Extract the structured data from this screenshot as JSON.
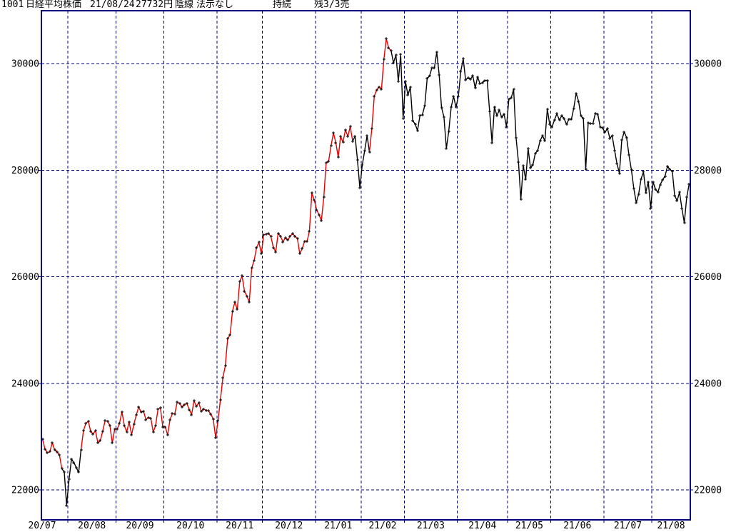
{
  "header": {
    "code": "1001",
    "name": "日経平均株価",
    "date": "21/08/24",
    "price": "27732円",
    "candle_type": "陰線",
    "display_mode": "法示なし",
    "signal_status": "持続",
    "position": "残3/3売"
  },
  "chart_data": {
    "type": "line",
    "title": "1001 日経平均株価 21/08/24 27732円 陰線 法示なし 持続 残3/3売",
    "xlabel": "",
    "ylabel": "",
    "y_ticks": [
      22000,
      24000,
      26000,
      28000,
      30000
    ],
    "ylim": [
      21430,
      30990
    ],
    "grid": "dashed navy, vertical lines at month boundaries",
    "legend": "line colored red (buy signal period) / black (sell signal period), black + markers at daily closes",
    "palette": {
      "frame": "#000080",
      "grid": "#000080",
      "red": "#e60000",
      "black": "#000000",
      "marker": "#000000",
      "text": "#000000",
      "background": "#ffffff"
    },
    "months": [
      {
        "label": "20/07",
        "values": [
          22945,
          22770,
          22696,
          22717,
          22884,
          22751,
          22715,
          22657,
          22397,
          22339,
          21710
        ]
      },
      {
        "label": "20/08",
        "values": [
          22195,
          22573,
          22515,
          22418,
          22330,
          22750,
          23110,
          23249,
          23289,
          23096,
          23051,
          23110,
          22880,
          22920,
          23100,
          23296,
          23290,
          23208,
          22882,
          23140
        ]
      },
      {
        "label": "20/09",
        "values": [
          23138,
          23247,
          23466,
          23205,
          23090,
          23274,
          23033,
          23235,
          23406,
          23559,
          23455,
          23476,
          23319,
          23360,
          23346,
          23087,
          23204,
          23512,
          23539,
          23185
        ]
      },
      {
        "label": "20/10",
        "values": [
          23185,
          23030,
          23312,
          23434,
          23423,
          23647,
          23620,
          23559,
          23601,
          23627,
          23507,
          23411,
          23671,
          23567,
          23639,
          23474,
          23517,
          23494,
          23486,
          23418,
          23332,
          22977
        ]
      },
      {
        "label": "20/11",
        "values": [
          23295,
          23695,
          24105,
          24325,
          24839,
          24906,
          25350,
          25521,
          25385,
          25907,
          26014,
          25728,
          25634,
          25527,
          26165,
          26297,
          26537,
          26645,
          26434
        ]
      },
      {
        "label": "20/12",
        "values": [
          26787,
          26800,
          26809,
          26751,
          26547,
          26467,
          26817,
          26757,
          26653,
          26732,
          26688,
          26757,
          26806,
          26763,
          26714,
          26436,
          26524,
          26668,
          26657,
          26854,
          27568,
          27444
        ]
      },
      {
        "label": "21/01",
        "values": [
          27258,
          27159,
          27056,
          27490,
          28139,
          28164,
          28456,
          28698,
          28519,
          28242,
          28633,
          28523,
          28757,
          28631,
          28822,
          28546,
          28635,
          28197,
          27663
        ]
      },
      {
        "label": "21/02",
        "values": [
          28091,
          28362,
          28646,
          28341,
          28779,
          29388,
          29505,
          29563,
          29520,
          30084,
          30467,
          30292,
          30236,
          30017,
          30156,
          29671,
          30168,
          28966
        ]
      },
      {
        "label": "21/03",
        "values": [
          29663,
          29408,
          29559,
          28930,
          28864,
          28743,
          29027,
          29036,
          29212,
          29718,
          29767,
          29921,
          29914,
          30217,
          29792,
          29174,
          28995,
          28406,
          28729,
          29177,
          29385,
          29179
        ]
      },
      {
        "label": "21/04",
        "values": [
          29389,
          29854,
          30089,
          29697,
          29731,
          29709,
          29768,
          29539,
          29751,
          29621,
          29643,
          29683,
          29685,
          29100,
          28508,
          29188,
          29021,
          29126,
          28992,
          29053,
          28813
        ]
      },
      {
        "label": "21/05",
        "values": [
          29331,
          29358,
          29518,
          28609,
          28148,
          27449,
          28084,
          27824,
          28406,
          28044,
          28098,
          28318,
          28364,
          28554,
          28642,
          28549,
          29149,
          28860
        ]
      },
      {
        "label": "21/06",
        "values": [
          28814,
          28946,
          29058,
          28942,
          29019,
          28964,
          28860,
          28959,
          28949,
          29161,
          29441,
          29291,
          29018,
          28964,
          28011,
          28884,
          28875,
          28876,
          29066,
          29048,
          28812,
          28792
        ]
      },
      {
        "label": "21/07",
        "values": [
          28707,
          28783,
          28598,
          28643,
          28366,
          28118,
          27940,
          28569,
          28718,
          28608,
          28279,
          28003,
          27652,
          27388,
          27548,
          27833,
          27970,
          27581,
          27782,
          27284
        ]
      },
      {
        "label": "21/08",
        "values": [
          27781,
          27641,
          27584,
          27728,
          27820,
          27888,
          28070,
          28015,
          27977,
          27523,
          27424,
          27585,
          27281,
          27013,
          27494,
          27732
        ]
      }
    ],
    "segments": [
      {
        "from": 0,
        "to": 8,
        "color": "red"
      },
      {
        "from": 8,
        "to": 16,
        "color": "black"
      },
      {
        "from": 16,
        "to": 129,
        "color": "red"
      },
      {
        "from": 129,
        "to": 136,
        "color": "black"
      },
      {
        "from": 136,
        "to": 145,
        "color": "red"
      },
      {
        "from": 145,
        "to": 269,
        "color": "black"
      }
    ]
  }
}
